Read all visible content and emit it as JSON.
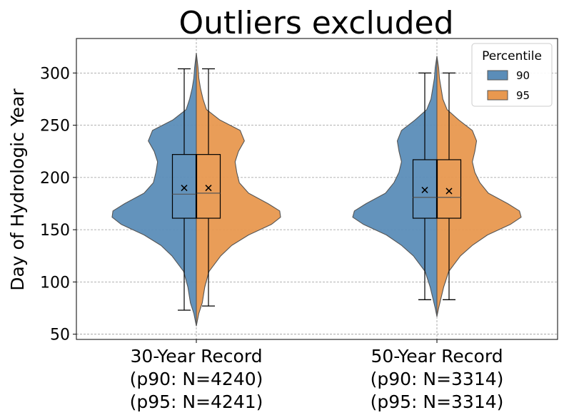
{
  "chart_data": {
    "type": "violin",
    "title": "Outliers excluded",
    "xlabel": "",
    "ylabel": "Day of Hydrologic Year",
    "ylim": [
      45,
      333
    ],
    "yticks": [
      50,
      100,
      150,
      200,
      250,
      300
    ],
    "grid": true,
    "legend": {
      "title": "Percentile",
      "placement": "top-right",
      "entries": [
        "90",
        "95"
      ]
    },
    "colors": {
      "90": "#5b8db8",
      "95": "#e8984f",
      "outline": "#555555"
    },
    "categories": [
      {
        "lines": [
          "30-Year Record",
          "(p90: N=4240)",
          "(p95: N=4241)"
        ]
      },
      {
        "lines": [
          "50-Year Record",
          "(p90: N=3314)",
          "(p95: N=3314)"
        ]
      }
    ],
    "series": [
      {
        "name": "90",
        "groups": [
          {
            "min": 73,
            "q1": 161,
            "median": 184,
            "q3": 222,
            "max": 304,
            "mean": 190
          },
          {
            "min": 83,
            "q1": 161,
            "median": 181,
            "q3": 217,
            "max": 300,
            "mean": 188
          }
        ]
      },
      {
        "name": "95",
        "groups": [
          {
            "min": 77,
            "q1": 161,
            "median": 185,
            "q3": 222,
            "max": 304,
            "mean": 190
          },
          {
            "min": 83,
            "q1": 161,
            "median": 181,
            "q3": 217,
            "max": 300,
            "mean": 187
          }
        ]
      }
    ],
    "density": [
      {
        "range": [
          58,
          319
        ],
        "y": [
          58,
          70,
          80,
          95,
          110,
          125,
          135,
          145,
          155,
          162,
          168,
          175,
          185,
          195,
          205,
          215,
          225,
          235,
          245,
          255,
          265,
          275,
          285,
          295,
          305,
          312,
          319
        ],
        "half": [
          0,
          0.03,
          0.07,
          0.1,
          0.15,
          0.29,
          0.42,
          0.62,
          0.89,
          1.0,
          0.99,
          0.85,
          0.62,
          0.51,
          0.48,
          0.46,
          0.5,
          0.57,
          0.52,
          0.28,
          0.12,
          0.08,
          0.05,
          0.03,
          0.02,
          0.01,
          0
        ]
      },
      {
        "range": [
          67,
          316
        ],
        "y": [
          67,
          75,
          85,
          95,
          110,
          125,
          135,
          145,
          155,
          162,
          168,
          175,
          185,
          195,
          205,
          215,
          225,
          235,
          245,
          255,
          265,
          275,
          285,
          295,
          305,
          316
        ],
        "half": [
          0,
          0.02,
          0.05,
          0.08,
          0.14,
          0.28,
          0.42,
          0.6,
          0.87,
          1.0,
          0.98,
          0.84,
          0.61,
          0.51,
          0.45,
          0.42,
          0.45,
          0.47,
          0.42,
          0.26,
          0.12,
          0.07,
          0.05,
          0.03,
          0.02,
          0
        ]
      }
    ]
  }
}
